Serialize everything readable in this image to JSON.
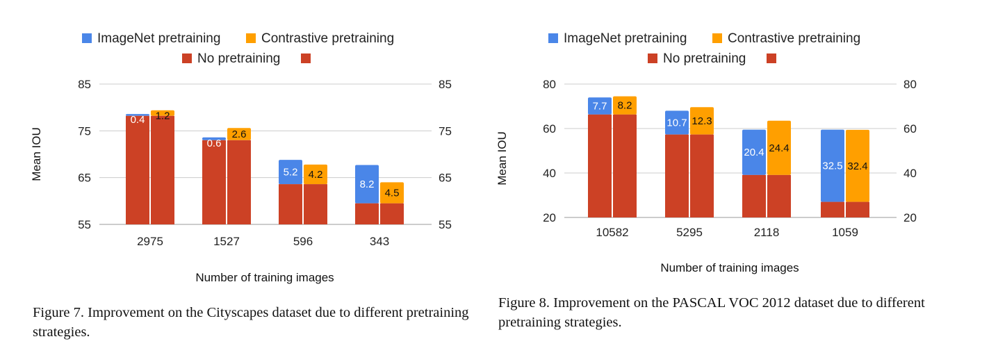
{
  "chart_data": [
    {
      "type": "bar",
      "stacked": true,
      "title": "",
      "xlabel": "Number of training images",
      "ylabel": "Mean IOU",
      "ylim": [
        55,
        85
      ],
      "yticks": [
        55,
        65,
        75,
        85
      ],
      "right_axis": true,
      "grid": true,
      "legend_placement": "top",
      "legend": [
        "ImageNet pretraining",
        "Contrastive pretraining",
        "No pretraining",
        ""
      ],
      "categories": [
        "2975",
        "1527",
        "596",
        "343"
      ],
      "base": {
        "name": "No pretraining",
        "values": [
          78.2,
          73.0,
          63.6,
          59.5
        ]
      },
      "series": [
        {
          "name": "ImageNet pretraining",
          "values": [
            0.4,
            0.6,
            5.2,
            8.2
          ],
          "labels": [
            "0.4",
            "0.6",
            "5.2",
            "8.2"
          ]
        },
        {
          "name": "Contrastive pretraining",
          "values": [
            1.2,
            2.6,
            4.2,
            4.5
          ],
          "labels": [
            "1.2",
            "2.6",
            "4.2",
            "4.5"
          ]
        }
      ],
      "caption": "Figure 7. Improvement on the Cityscapes dataset due to different pretraining strategies."
    },
    {
      "type": "bar",
      "stacked": true,
      "title": "",
      "xlabel": "Number of training images",
      "ylabel": "Mean IOU",
      "ylim": [
        20,
        80
      ],
      "yticks": [
        20,
        40,
        60,
        80
      ],
      "right_axis": true,
      "grid": true,
      "legend_placement": "top",
      "legend": [
        "ImageNet pretraining",
        "Contrastive pretraining",
        "No pretraining",
        ""
      ],
      "categories": [
        "10582",
        "5295",
        "2118",
        "1059"
      ],
      "base": {
        "name": "No pretraining",
        "values": [
          66.3,
          57.3,
          39.1,
          27.0
        ]
      },
      "series": [
        {
          "name": "ImageNet pretraining",
          "values": [
            7.7,
            10.7,
            20.4,
            32.5
          ],
          "labels": [
            "7.7",
            "10.7",
            "20.4",
            "32.5"
          ]
        },
        {
          "name": "Contrastive pretraining",
          "values": [
            8.2,
            12.3,
            24.4,
            32.4
          ],
          "labels": [
            "8.2",
            "12.3",
            "24.4",
            "32.4"
          ]
        }
      ],
      "caption": "Figure 8. Improvement on the PASCAL VOC 2012 dataset due to different pretraining strategies."
    }
  ],
  "colors": {
    "imagenet": "#4a86e8",
    "contrastive": "#ff9f00",
    "no_pretraining": "#cc4125",
    "label_on_blue": "#ffffff",
    "label_on_orange": "#111111",
    "grid": "#cccccc"
  }
}
